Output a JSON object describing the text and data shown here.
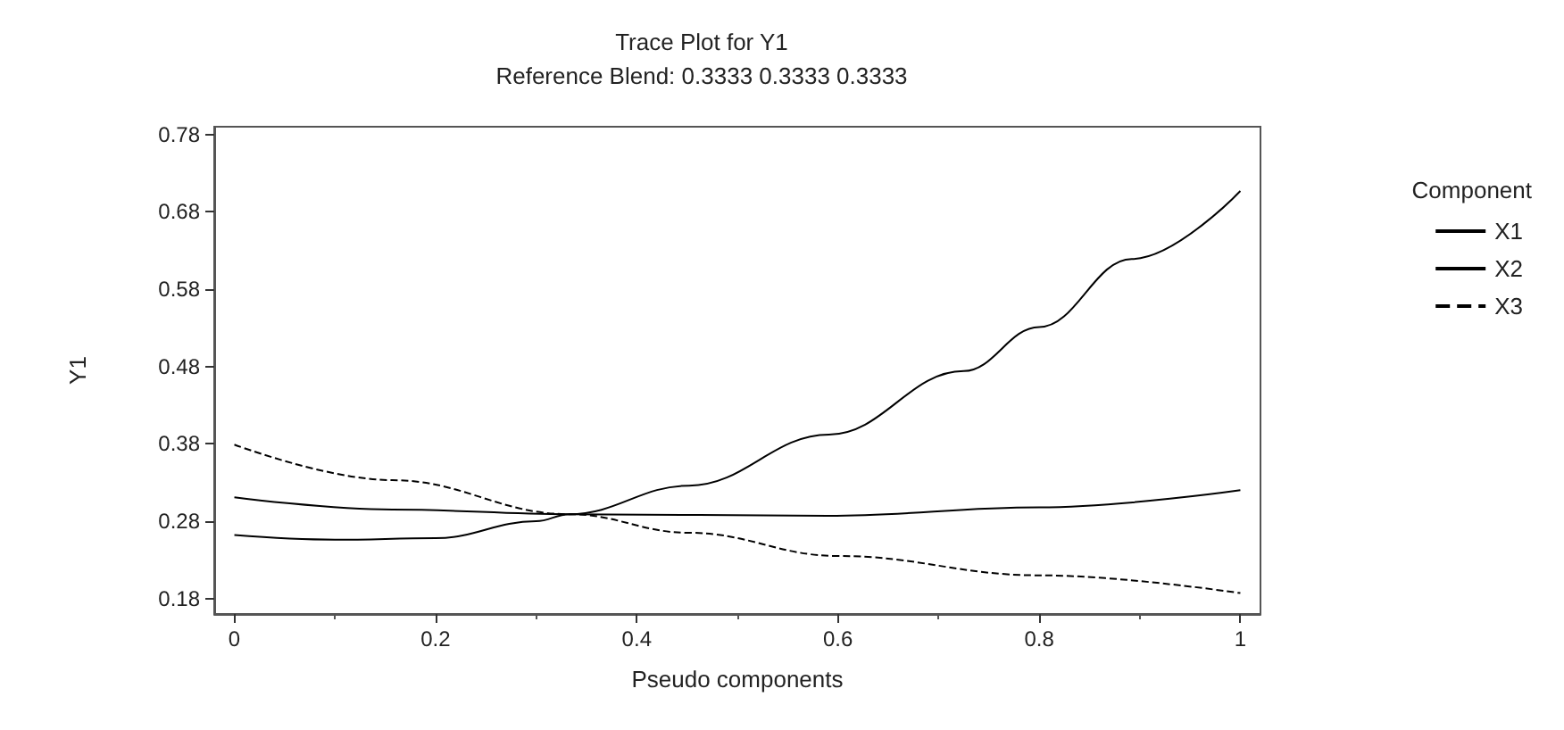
{
  "chart_data": {
    "type": "line",
    "title": "Trace Plot for Y1",
    "subtitle": "Reference Blend: 0.3333 0.3333 0.3333",
    "xlabel": "Pseudo components",
    "ylabel": "Y1",
    "legend_title": "Component",
    "legend": "right",
    "grid": false,
    "marker": "none",
    "xlim": [
      -0.02,
      1.02
    ],
    "xticks": [
      0,
      0.2,
      0.4,
      0.6,
      0.8,
      1
    ],
    "ylim": [
      0.16,
      0.79
    ],
    "yticks": [
      0.18,
      0.28,
      0.38,
      0.48,
      0.58,
      0.68,
      0.78
    ],
    "series": [
      {
        "name": "X1",
        "color": "#000000",
        "line_style": "solid",
        "x": [
          0,
          0.1,
          0.2,
          0.3,
          0.333,
          0.452,
          0.591,
          0.725,
          0.8,
          0.892,
          1
        ],
        "values": [
          0.262,
          0.256,
          0.258,
          0.28,
          0.289,
          0.326,
          0.392,
          0.474,
          0.531,
          0.619,
          0.707
        ]
      },
      {
        "name": "X2",
        "color": "#000000",
        "line_style": "solid",
        "x": [
          0,
          0.157,
          0.333,
          0.59,
          0.8,
          1
        ],
        "values": [
          0.311,
          0.295,
          0.289,
          0.287,
          0.298,
          0.32
        ]
      },
      {
        "name": "X3",
        "color": "#000000",
        "line_style": "dashed",
        "x": [
          0,
          0.157,
          0.333,
          0.452,
          0.6,
          0.8,
          1
        ],
        "values": [
          0.379,
          0.333,
          0.289,
          0.265,
          0.235,
          0.21,
          0.187
        ]
      }
    ]
  }
}
